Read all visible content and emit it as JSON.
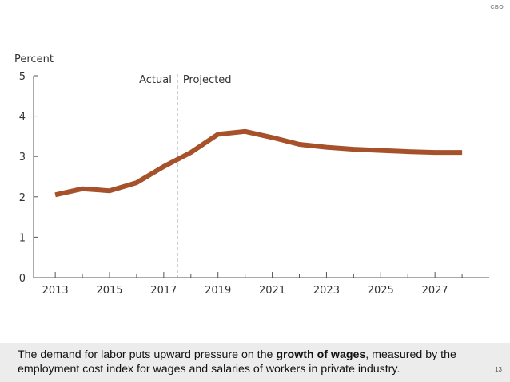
{
  "logo": {
    "text": "CBO"
  },
  "page_number": "13",
  "caption": {
    "before": "The demand for labor puts upward pressure on the ",
    "bold": "growth of wages",
    "after": ", measured by the employment cost index for wages and salaries of workers in private industry."
  },
  "colors": {
    "line": "#a6512a",
    "axis": "#555555",
    "divider": "#6e6e6e",
    "tick_text": "#333333",
    "band": "#ececec"
  },
  "chart_data": {
    "type": "line",
    "title": "",
    "ylabel": "Percent",
    "xlabel": "",
    "xlim": [
      2012.2,
      2029
    ],
    "ylim": [
      0,
      5
    ],
    "x_ticks": [
      2013,
      2015,
      2017,
      2019,
      2021,
      2023,
      2025,
      2027
    ],
    "x_tick_labels": [
      "2013",
      "2015",
      "2017",
      "2019",
      "2021",
      "2023",
      "2025",
      "2027"
    ],
    "minor_x_ticks": [
      2014,
      2016,
      2018,
      2020,
      2022,
      2024,
      2026,
      2028
    ],
    "y_ticks": [
      0,
      1,
      2,
      3,
      4,
      5
    ],
    "y_tick_labels": [
      "0",
      "1",
      "2",
      "3",
      "4",
      "5"
    ],
    "grid": false,
    "divider": {
      "x": 2017.5,
      "left_label": "Actual",
      "right_label": "Projected"
    },
    "series": [
      {
        "name": "Growth of wages (employment cost index)",
        "x": [
          2013,
          2014,
          2015,
          2016,
          2017,
          2018,
          2019,
          2020,
          2021,
          2022,
          2023,
          2024,
          2025,
          2026,
          2027,
          2028
        ],
        "values": [
          2.05,
          2.2,
          2.15,
          2.35,
          2.75,
          3.1,
          3.55,
          3.62,
          3.47,
          3.3,
          3.23,
          3.18,
          3.15,
          3.12,
          3.1,
          3.1
        ]
      }
    ]
  }
}
